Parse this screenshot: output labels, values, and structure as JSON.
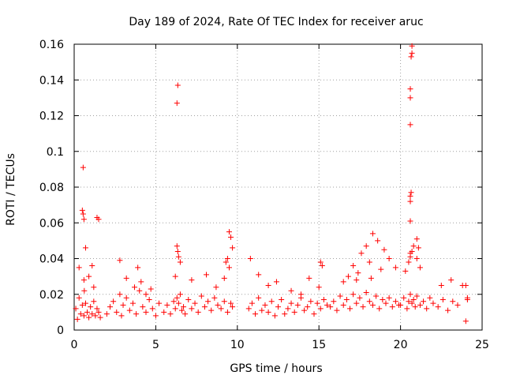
{
  "chart_data": {
    "type": "scatter",
    "title": "Day 189 of 2024, Rate Of TEC Index for receiver aruc",
    "xlabel": "GPS time / hours",
    "ylabel": "ROTI / TECUs",
    "xlim": [
      0,
      25
    ],
    "ylim": [
      0,
      0.16
    ],
    "x_ticks": [
      "0",
      "5",
      "10",
      "15",
      "20",
      "25"
    ],
    "y_ticks": [
      "0",
      "0.02",
      "0.04",
      "0.06",
      "0.08",
      "0.1",
      "0.12",
      "0.14",
      "0.16"
    ],
    "grid": true,
    "marker": "+",
    "color": "#ff0000",
    "series": [
      {
        "name": "ROTI",
        "x": [
          0.1,
          0.2,
          0.3,
          0.4,
          0.5,
          0.6,
          0.7,
          0.8,
          0.9,
          1.0,
          1.1,
          1.2,
          1.3,
          1.4,
          1.5,
          1.6,
          0.3,
          0.5,
          0.55,
          0.6,
          0.7,
          0.9,
          1.1,
          1.2,
          1.4,
          1.5,
          0.55,
          0.6,
          0.62,
          2.0,
          2.2,
          2.4,
          2.6,
          2.8,
          2.9,
          3.0,
          3.2,
          3.4,
          3.6,
          3.8,
          4.0,
          4.2,
          4.4,
          4.6,
          4.8,
          5.0,
          5.2,
          2.8,
          3.2,
          3.7,
          3.9,
          4.1,
          4.4,
          4.7,
          5.5,
          5.7,
          5.9,
          6.1,
          6.2,
          6.3,
          6.4,
          6.5,
          6.6,
          6.7,
          6.8,
          7.0,
          7.2,
          7.4,
          7.6,
          7.8,
          8.0,
          8.2,
          8.4,
          8.6,
          8.8,
          9.0,
          9.2,
          9.4,
          9.6,
          9.7,
          6.3,
          6.35,
          6.4,
          6.5,
          6.2,
          7.2,
          8.1,
          8.7,
          9.2,
          9.4,
          9.5,
          9.6,
          9.7,
          6.35,
          6.3,
          9.3,
          9.5,
          10.7,
          10.9,
          11.1,
          11.3,
          11.5,
          11.7,
          11.9,
          12.1,
          12.3,
          12.5,
          12.7,
          12.9,
          13.1,
          13.3,
          13.5,
          13.7,
          13.9,
          14.1,
          14.3,
          14.5,
          14.7,
          14.9,
          15.1,
          15.3,
          15.5,
          10.8,
          11.3,
          11.9,
          12.4,
          13.3,
          13.9,
          14.4,
          15.0,
          15.1,
          15.2,
          15.7,
          15.9,
          16.1,
          16.3,
          16.5,
          16.7,
          16.9,
          17.1,
          17.3,
          17.5,
          17.7,
          17.9,
          18.1,
          18.3,
          18.5,
          18.7,
          18.9,
          19.1,
          19.3,
          19.5,
          19.7,
          19.9,
          16.8,
          17.1,
          17.3,
          17.6,
          17.9,
          18.1,
          18.3,
          18.6,
          19.0,
          19.3,
          19.7,
          16.5,
          17.4,
          18.2,
          18.8,
          20.0,
          20.2,
          20.4,
          20.5,
          20.6,
          20.7,
          20.8,
          20.9,
          21.0,
          21.2,
          21.4,
          21.6,
          21.8,
          22.0,
          22.3,
          22.6,
          22.9,
          23.2,
          23.5,
          24.0,
          24.1,
          20.3,
          20.6,
          20.8,
          21.0,
          21.2,
          20.5,
          20.6,
          20.7,
          20.6,
          20.6,
          20.6,
          20.65,
          20.6,
          20.6,
          20.6,
          20.65,
          20.7,
          20.7,
          21.0,
          21.1,
          22.5,
          23.1,
          23.8,
          24.0,
          24.1
        ],
        "y": [
          0.012,
          0.006,
          0.018,
          0.009,
          0.014,
          0.008,
          0.015,
          0.01,
          0.007,
          0.013,
          0.009,
          0.016,
          0.008,
          0.012,
          0.01,
          0.007,
          0.035,
          0.067,
          0.065,
          0.062,
          0.046,
          0.03,
          0.036,
          0.024,
          0.063,
          0.062,
          0.091,
          0.028,
          0.022,
          0.009,
          0.013,
          0.016,
          0.01,
          0.02,
          0.008,
          0.014,
          0.018,
          0.011,
          0.015,
          0.009,
          0.022,
          0.013,
          0.01,
          0.017,
          0.012,
          0.008,
          0.015,
          0.039,
          0.029,
          0.024,
          0.035,
          0.027,
          0.02,
          0.023,
          0.01,
          0.014,
          0.009,
          0.016,
          0.012,
          0.018,
          0.015,
          0.02,
          0.011,
          0.013,
          0.009,
          0.017,
          0.012,
          0.015,
          0.01,
          0.019,
          0.013,
          0.016,
          0.011,
          0.018,
          0.014,
          0.012,
          0.016,
          0.01,
          0.015,
          0.013,
          0.047,
          0.044,
          0.041,
          0.038,
          0.03,
          0.028,
          0.031,
          0.024,
          0.029,
          0.04,
          0.055,
          0.052,
          0.046,
          0.137,
          0.127,
          0.038,
          0.035,
          0.012,
          0.015,
          0.009,
          0.018,
          0.011,
          0.014,
          0.01,
          0.016,
          0.008,
          0.013,
          0.017,
          0.009,
          0.012,
          0.015,
          0.01,
          0.014,
          0.018,
          0.011,
          0.013,
          0.016,
          0.009,
          0.015,
          0.012,
          0.017,
          0.014,
          0.04,
          0.031,
          0.025,
          0.027,
          0.022,
          0.02,
          0.029,
          0.024,
          0.038,
          0.036,
          0.013,
          0.016,
          0.011,
          0.019,
          0.014,
          0.017,
          0.012,
          0.02,
          0.015,
          0.018,
          0.013,
          0.021,
          0.016,
          0.014,
          0.019,
          0.012,
          0.017,
          0.015,
          0.018,
          0.013,
          0.016,
          0.014,
          0.03,
          0.036,
          0.028,
          0.043,
          0.047,
          0.038,
          0.054,
          0.05,
          0.045,
          0.04,
          0.035,
          0.027,
          0.032,
          0.029,
          0.034,
          0.014,
          0.018,
          0.012,
          0.016,
          0.02,
          0.015,
          0.017,
          0.013,
          0.019,
          0.014,
          0.016,
          0.012,
          0.018,
          0.015,
          0.013,
          0.017,
          0.011,
          0.016,
          0.014,
          0.005,
          0.017,
          0.033,
          0.043,
          0.047,
          0.04,
          0.035,
          0.038,
          0.041,
          0.044,
          0.061,
          0.072,
          0.075,
          0.077,
          0.115,
          0.13,
          0.135,
          0.153,
          0.155,
          0.159,
          0.051,
          0.046,
          0.025,
          0.028,
          0.025,
          0.025,
          0.018
        ]
      }
    ]
  }
}
